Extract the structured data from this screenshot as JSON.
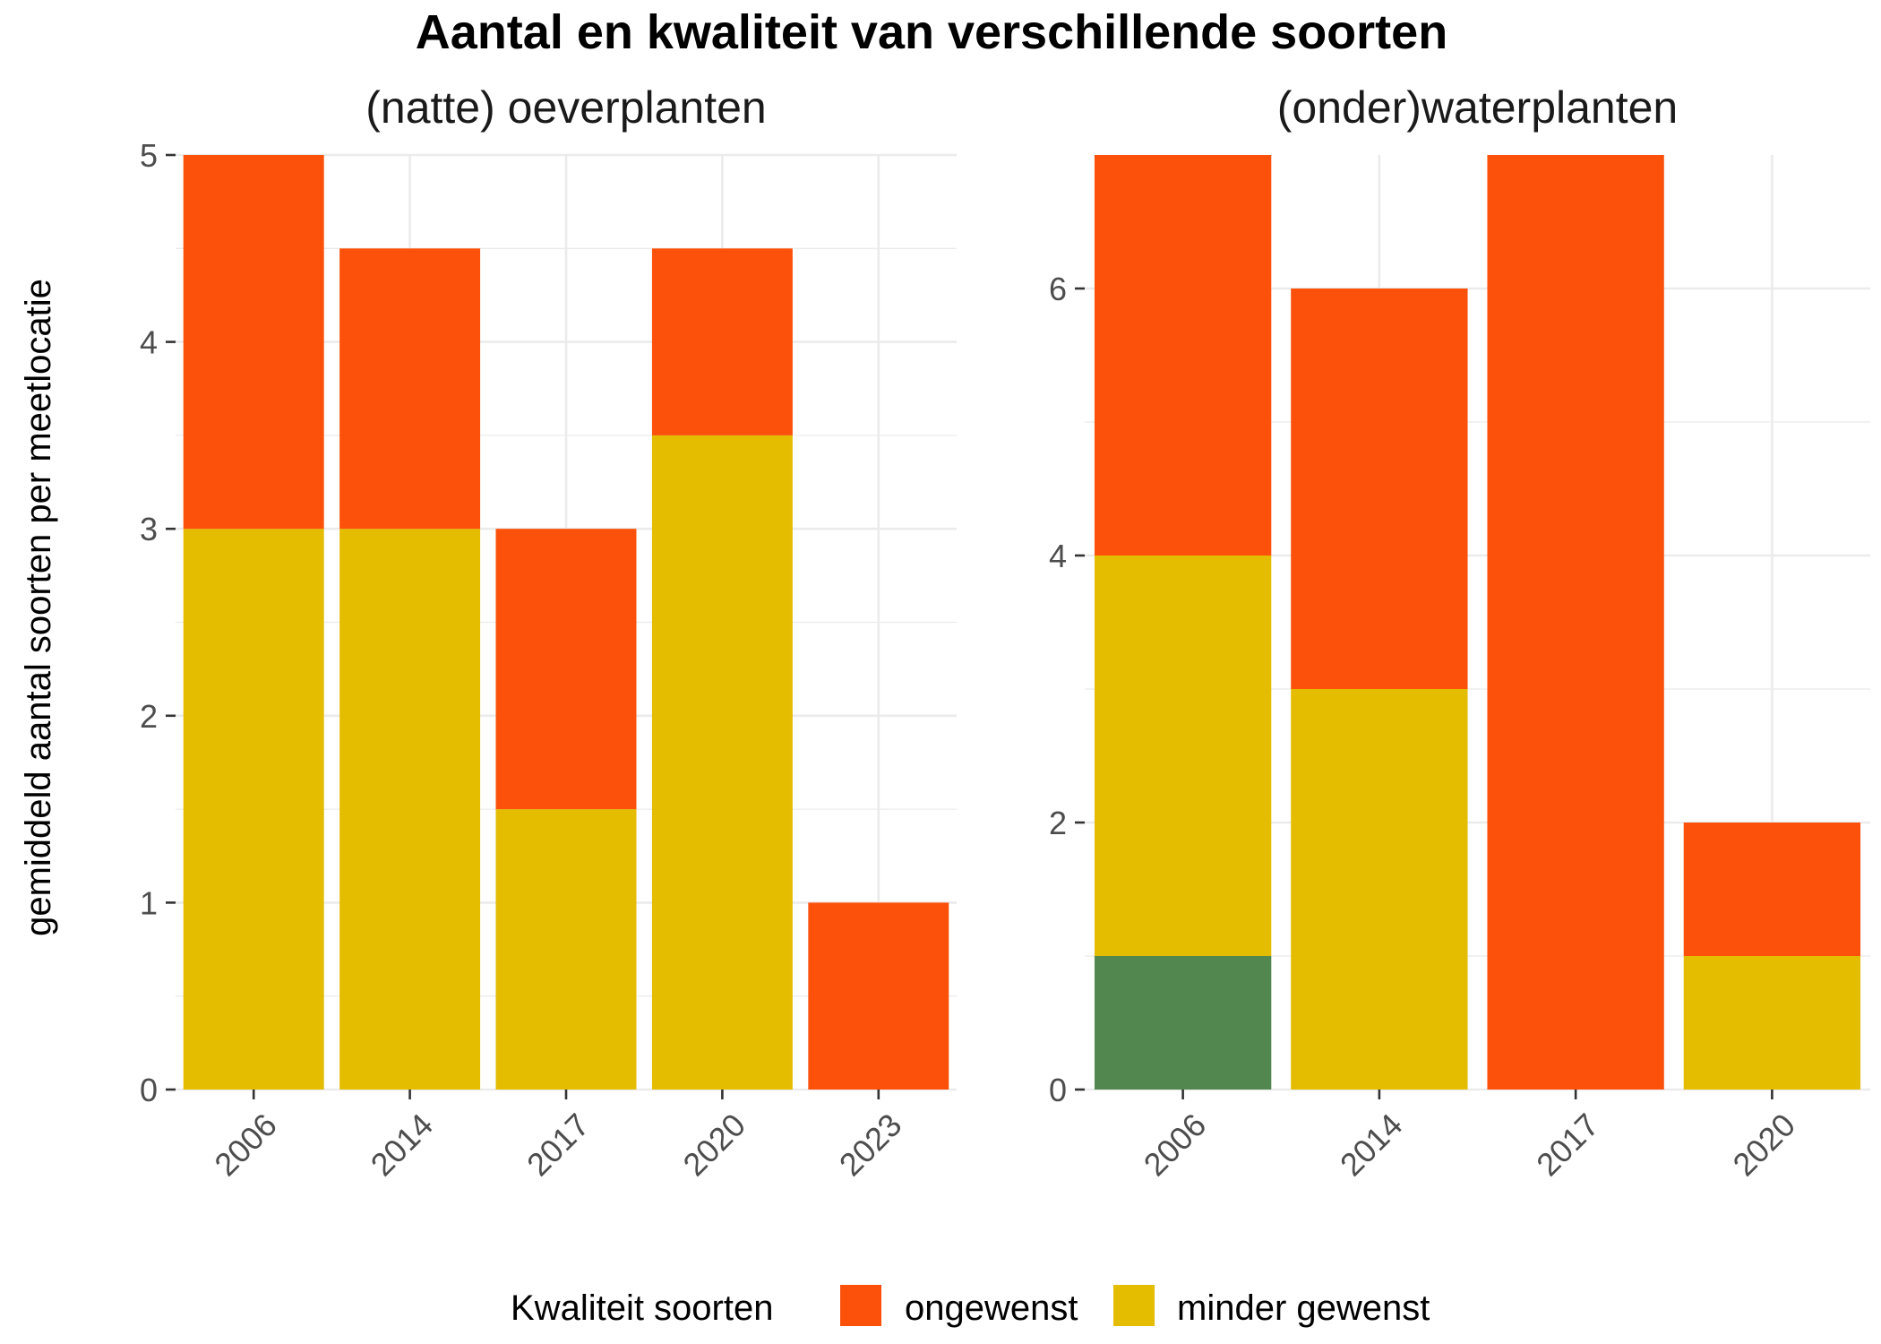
{
  "title": "Aantal en kwaliteit van verschillende soorten",
  "y_axis_label": "gemiddeld aantal soorten per meetlocatie",
  "legend": {
    "title": "Kwaliteit soorten",
    "items": [
      {
        "label": "ongewenst",
        "color": "#FC510A"
      },
      {
        "label": "minder gewenst",
        "color": "#E4BC00"
      }
    ]
  },
  "chart_data": [
    {
      "type": "bar",
      "stacked": true,
      "title": "(natte) oeverplanten",
      "categories": [
        "2006",
        "2014",
        "2017",
        "2020",
        "2023"
      ],
      "ylim": [
        0,
        5
      ],
      "yticks": [
        0,
        1,
        2,
        3,
        4,
        5
      ],
      "grid": true,
      "series": [
        {
          "key": "goed",
          "color": "#52884F",
          "values": [
            0,
            0,
            0,
            0,
            0
          ]
        },
        {
          "name": "minder gewenst",
          "color": "#E4BC00",
          "values": [
            3,
            3,
            1.5,
            3.5,
            0
          ]
        },
        {
          "name": "ongewenst",
          "color": "#FC510A",
          "values": [
            2,
            1.5,
            1.5,
            1,
            1
          ]
        }
      ]
    },
    {
      "type": "bar",
      "stacked": true,
      "title": "(onder)waterplanten",
      "categories": [
        "2006",
        "2014",
        "2017",
        "2020"
      ],
      "ylim": [
        0,
        7
      ],
      "yticks": [
        0,
        2,
        4,
        6
      ],
      "grid": true,
      "series": [
        {
          "key": "goed",
          "color": "#52884F",
          "values": [
            1,
            0,
            0,
            0
          ]
        },
        {
          "name": "minder gewenst",
          "color": "#E4BC00",
          "values": [
            3,
            3,
            0,
            1
          ]
        },
        {
          "name": "ongewenst",
          "color": "#FC510A",
          "values": [
            3,
            3,
            7,
            1
          ]
        }
      ]
    }
  ]
}
